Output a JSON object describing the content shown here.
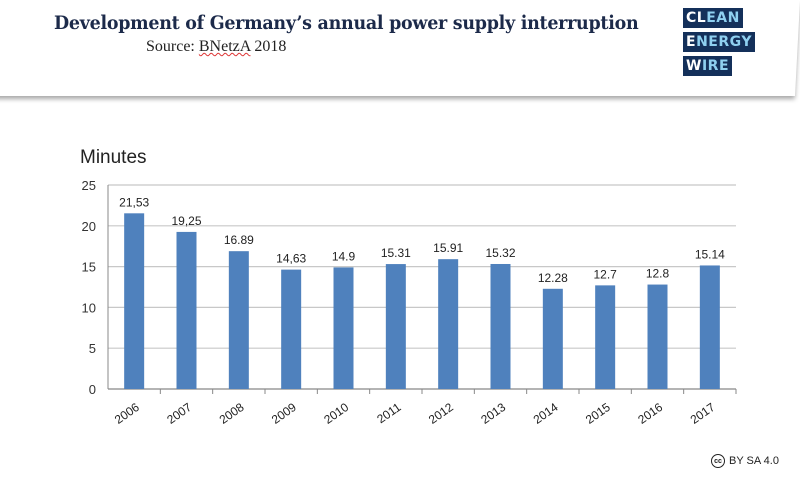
{
  "header": {
    "title": "Development of Germany’s annual power supply interruption",
    "source_prefix": "Source: ",
    "source_name": "BNetzA",
    "source_year": " 2018"
  },
  "logo": {
    "lines": [
      [
        "CL",
        "EAN"
      ],
      [
        "E",
        "NERGY"
      ],
      [
        "W",
        "IRE"
      ]
    ],
    "color": "#14305a"
  },
  "license": {
    "icon": "creative-commons-icon",
    "text": "BY SA 4.0"
  },
  "chart_data": {
    "type": "bar",
    "ylabel": "Minutes",
    "categories": [
      "2006",
      "2007",
      "2008",
      "2009",
      "2010",
      "2011",
      "2012",
      "2013",
      "2014",
      "2015",
      "2016",
      "2017"
    ],
    "values": [
      21.53,
      19.25,
      16.89,
      14.63,
      14.9,
      15.31,
      15.91,
      15.32,
      12.28,
      12.7,
      12.8,
      15.14
    ],
    "data_labels": [
      "21,53",
      "19,25",
      "16.89",
      "14,63",
      "14.9",
      "15.31",
      "15.91",
      "15.32",
      "12.28",
      "12.7",
      "12.8",
      "15.14"
    ],
    "yticks": [
      "0",
      "5",
      "10",
      "15",
      "20",
      "25"
    ],
    "ylim": [
      0,
      25
    ],
    "grid": true,
    "bar_color": "#4f81bd"
  }
}
